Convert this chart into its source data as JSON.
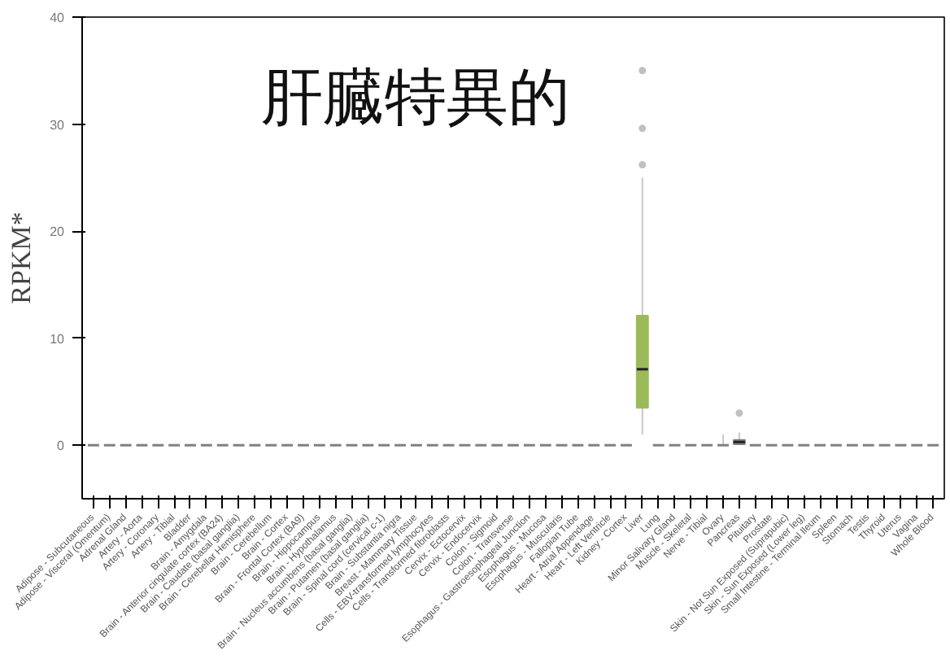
{
  "chart_data": {
    "type": "box",
    "ylabel": "RPKM*",
    "annotations": [
      "肝臓特異的"
    ],
    "ylim": [
      -5,
      40
    ],
    "yticks": [
      0,
      10,
      20,
      30,
      40
    ],
    "grid": false,
    "categories": [
      "Adipose - Subcutaneous",
      "Adipose - Visceral (Omentum)",
      "Adrenal Gland",
      "Artery - Aorta",
      "Artery - Coronary",
      "Artery - Tibial",
      "Bladder",
      "Brain - Amygdala",
      "Brain - Anterior cingulate cortex (BA24)",
      "Brain - Caudate (basal ganglia)",
      "Brain - Cerebellar Hemisphere",
      "Brain - Cerebellum",
      "Brain - Cortex",
      "Brain - Frontal Cortex (BA9)",
      "Brain - Hippocampus",
      "Brain - Hypothalamus",
      "Brain - Nucleus accumbens (basal ganglia)",
      "Brain - Putamen (basal ganglia)",
      "Brain - Spinal cord (cervical c-1)",
      "Brain - Substantia nigra",
      "Breast - Mammary Tissue",
      "Cells - EBV-transformed lymphocytes",
      "Cells - Transformed fibroblasts",
      "Cervix - Ectocervix",
      "Cervix - Endocervix",
      "Colon - Sigmoid",
      "Colon - Transverse",
      "Esophagus - Gastroesophageal Junction",
      "Esophagus - Mucosa",
      "Esophagus - Muscularis",
      "Fallopian Tube",
      "Heart - Atrial Appendage",
      "Heart - Left Ventricle",
      "Kidney - Cortex",
      "Liver",
      "Lung",
      "Minor Salivary Gland",
      "Muscle - Skeletal",
      "Nerve - Tibial",
      "Ovary",
      "Pancreas",
      "Pituitary",
      "Prostate",
      "Skin - Not Sun Exposed (Suprapubic)",
      "Skin - Sun Exposed (Lower leg)",
      "Small Intestine - Terminal Ileum",
      "Spleen",
      "Stomach",
      "Testis",
      "Thyroid",
      "Uterus",
      "Vagina",
      "Whole Blood"
    ],
    "colors": [
      "#808080",
      "#808080",
      "#808080",
      "#808080",
      "#808080",
      "#808080",
      "#808080",
      "#808080",
      "#808080",
      "#808080",
      "#808080",
      "#808080",
      "#808080",
      "#808080",
      "#808080",
      "#808080",
      "#808080",
      "#808080",
      "#808080",
      "#808080",
      "#808080",
      "#808080",
      "#808080",
      "#808080",
      "#808080",
      "#808080",
      "#808080",
      "#808080",
      "#808080",
      "#808080",
      "#808080",
      "#808080",
      "#808080",
      "#808080",
      "#9bbb59",
      "#808080",
      "#808080",
      "#808080",
      "#808080",
      "#808080",
      "#808080",
      "#808080",
      "#808080",
      "#808080",
      "#808080",
      "#808080",
      "#808080",
      "#808080",
      "#808080",
      "#808080",
      "#808080",
      "#808080",
      "#808080"
    ],
    "boxes": [
      {
        "low": 0,
        "q1": 0,
        "median": 0,
        "q3": 0,
        "high": 0
      },
      {
        "low": 0,
        "q1": 0,
        "median": 0,
        "q3": 0,
        "high": 0
      },
      {
        "low": 0,
        "q1": 0,
        "median": 0,
        "q3": 0,
        "high": 0
      },
      {
        "low": 0,
        "q1": 0,
        "median": 0,
        "q3": 0,
        "high": 0
      },
      {
        "low": 0,
        "q1": 0,
        "median": 0,
        "q3": 0,
        "high": 0
      },
      {
        "low": 0,
        "q1": 0,
        "median": 0,
        "q3": 0,
        "high": 0
      },
      {
        "low": 0,
        "q1": 0,
        "median": 0,
        "q3": 0,
        "high": 0
      },
      {
        "low": 0,
        "q1": 0,
        "median": 0,
        "q3": 0,
        "high": 0
      },
      {
        "low": 0,
        "q1": 0,
        "median": 0,
        "q3": 0,
        "high": 0
      },
      {
        "low": 0,
        "q1": 0,
        "median": 0,
        "q3": 0,
        "high": 0
      },
      {
        "low": 0,
        "q1": 0,
        "median": 0,
        "q3": 0,
        "high": 0
      },
      {
        "low": 0,
        "q1": 0,
        "median": 0,
        "q3": 0,
        "high": 0
      },
      {
        "low": 0,
        "q1": 0,
        "median": 0,
        "q3": 0,
        "high": 0
      },
      {
        "low": 0,
        "q1": 0,
        "median": 0,
        "q3": 0,
        "high": 0
      },
      {
        "low": 0,
        "q1": 0,
        "median": 0,
        "q3": 0,
        "high": 0
      },
      {
        "low": 0,
        "q1": 0,
        "median": 0,
        "q3": 0,
        "high": 0
      },
      {
        "low": 0,
        "q1": 0,
        "median": 0,
        "q3": 0,
        "high": 0
      },
      {
        "low": 0,
        "q1": 0,
        "median": 0,
        "q3": 0,
        "high": 0
      },
      {
        "low": 0,
        "q1": 0,
        "median": 0,
        "q3": 0,
        "high": 0
      },
      {
        "low": 0,
        "q1": 0,
        "median": 0,
        "q3": 0,
        "high": 0
      },
      {
        "low": 0,
        "q1": 0,
        "median": 0,
        "q3": 0,
        "high": 0
      },
      {
        "low": 0,
        "q1": 0,
        "median": 0,
        "q3": 0,
        "high": 0
      },
      {
        "low": 0,
        "q1": 0,
        "median": 0,
        "q3": 0,
        "high": 0
      },
      {
        "low": 0,
        "q1": 0,
        "median": 0,
        "q3": 0,
        "high": 0
      },
      {
        "low": 0,
        "q1": 0,
        "median": 0,
        "q3": 0,
        "high": 0
      },
      {
        "low": 0,
        "q1": 0,
        "median": 0,
        "q3": 0,
        "high": 0
      },
      {
        "low": 0,
        "q1": 0,
        "median": 0,
        "q3": 0,
        "high": 0
      },
      {
        "low": 0,
        "q1": 0,
        "median": 0,
        "q3": 0,
        "high": 0
      },
      {
        "low": 0,
        "q1": 0,
        "median": 0,
        "q3": 0,
        "high": 0
      },
      {
        "low": 0,
        "q1": 0,
        "median": 0,
        "q3": 0,
        "high": 0
      },
      {
        "low": 0,
        "q1": 0,
        "median": 0,
        "q3": 0,
        "high": 0
      },
      {
        "low": 0,
        "q1": 0,
        "median": 0,
        "q3": 0,
        "high": 0
      },
      {
        "low": 0,
        "q1": 0,
        "median": 0,
        "q3": 0,
        "high": 0
      },
      {
        "low": 0,
        "q1": 0,
        "median": 0,
        "q3": 0,
        "high": 0
      },
      {
        "low": 1,
        "q1": 3.5,
        "median": 7.1,
        "q3": 12.1,
        "high": 25,
        "outliers": [
          26.2,
          29.6,
          35
        ]
      },
      {
        "low": 0,
        "q1": 0,
        "median": 0,
        "q3": 0,
        "high": 0
      },
      {
        "low": 0,
        "q1": 0,
        "median": 0,
        "q3": 0,
        "high": 0
      },
      {
        "low": 0,
        "q1": 0,
        "median": 0,
        "q3": 0,
        "high": 0
      },
      {
        "low": 0,
        "q1": 0,
        "median": 0,
        "q3": 0,
        "high": 0
      },
      {
        "low": 0,
        "q1": 0,
        "median": 0,
        "q3": 0,
        "high": 1
      },
      {
        "low": 0,
        "q1": 0.1,
        "median": 0.3,
        "q3": 0.5,
        "high": 1.2,
        "outliers": [
          3
        ]
      },
      {
        "low": 0,
        "q1": 0,
        "median": 0,
        "q3": 0,
        "high": 0
      },
      {
        "low": 0,
        "q1": 0,
        "median": 0,
        "q3": 0,
        "high": 0
      },
      {
        "low": 0,
        "q1": 0,
        "median": 0,
        "q3": 0,
        "high": 0
      },
      {
        "low": 0,
        "q1": 0,
        "median": 0,
        "q3": 0,
        "high": 0
      },
      {
        "low": 0,
        "q1": 0,
        "median": 0,
        "q3": 0,
        "high": 0
      },
      {
        "low": 0,
        "q1": 0,
        "median": 0,
        "q3": 0,
        "high": 0
      },
      {
        "low": 0,
        "q1": 0,
        "median": 0,
        "q3": 0,
        "high": 0
      },
      {
        "low": 0,
        "q1": 0,
        "median": 0,
        "q3": 0,
        "high": 0
      },
      {
        "low": 0,
        "q1": 0,
        "median": 0,
        "q3": 0,
        "high": 0
      },
      {
        "low": 0,
        "q1": 0,
        "median": 0,
        "q3": 0,
        "high": 0
      },
      {
        "low": 0,
        "q1": 0,
        "median": 0,
        "q3": 0,
        "high": 0
      },
      {
        "low": 0,
        "q1": 0,
        "median": 0,
        "q3": 0,
        "high": 0
      }
    ]
  }
}
